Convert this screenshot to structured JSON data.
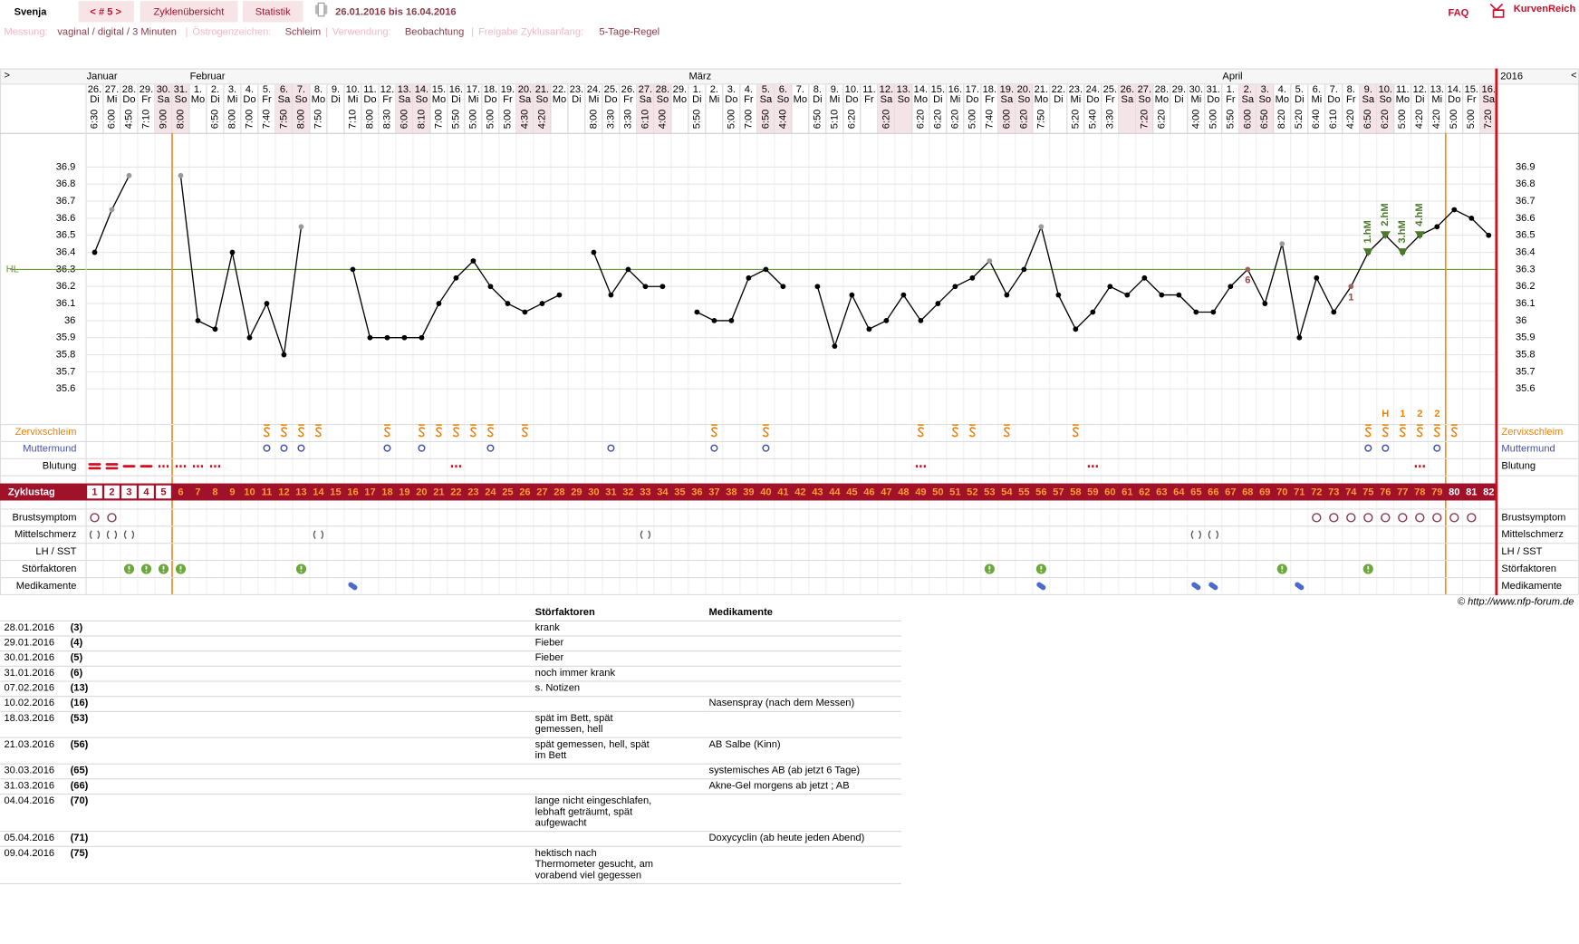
{
  "header": {
    "name": "Svenja",
    "cycle_nav": "< # 5 >",
    "tabs": [
      "Zyklenübersicht",
      "Statistik"
    ],
    "date_range": "26.01.2016 bis 16.04.2016",
    "faq": "FAQ",
    "brand": "KurvenReich",
    "separator": "|"
  },
  "settings": [
    {
      "label": "Messung:",
      "value": "vaginal / digital / 3 Minuten"
    },
    {
      "label": "Östrogenzeichen:",
      "value": "Schleim"
    },
    {
      "label": "Verwendung:",
      "value": "Beobachtung"
    },
    {
      "label": "Freigabe Zyklusanfang:",
      "value": "5-Tage-Regel"
    }
  ],
  "chart_data": {
    "type": "line",
    "nav_prev": ">",
    "nav_next": "<",
    "year": "2016",
    "months": [
      {
        "label": "Januar",
        "day": 0
      },
      {
        "label": "Februar",
        "day": 6
      },
      {
        "label": "März",
        "day": 35
      },
      {
        "label": "April",
        "day": 66
      }
    ],
    "days": {
      "dates": [
        "26.",
        "27.",
        "28.",
        "29.",
        "30.",
        "31.",
        "1.",
        "2.",
        "3.",
        "4.",
        "5.",
        "6.",
        "7.",
        "8.",
        "9.",
        "10.",
        "11.",
        "12.",
        "13.",
        "14.",
        "15.",
        "16.",
        "17.",
        "18.",
        "19.",
        "20.",
        "21.",
        "22.",
        "23.",
        "24.",
        "25.",
        "26.",
        "27.",
        "28.",
        "29.",
        "1.",
        "2.",
        "3.",
        "4.",
        "5.",
        "6.",
        "7.",
        "8.",
        "9.",
        "10.",
        "11.",
        "12.",
        "13.",
        "14.",
        "15.",
        "16.",
        "17.",
        "18.",
        "19.",
        "20.",
        "21.",
        "22.",
        "23.",
        "24.",
        "25.",
        "26.",
        "27.",
        "28.",
        "29.",
        "30.",
        "31.",
        "1.",
        "2.",
        "3.",
        "4.",
        "5.",
        "6.",
        "7.",
        "8.",
        "9.",
        "10.",
        "11.",
        "12.",
        "13.",
        "14.",
        "15.",
        "16."
      ],
      "weekdays": [
        "Di",
        "Mi",
        "Do",
        "Fr",
        "Sa",
        "So",
        "Mo",
        "Di",
        "Mi",
        "Do",
        "Fr",
        "Sa",
        "So",
        "Mo",
        "Di",
        "Mi",
        "Do",
        "Fr",
        "Sa",
        "So",
        "Mo",
        "Di",
        "Mi",
        "Do",
        "Fr",
        "Sa",
        "So",
        "Mo",
        "Di",
        "Mi",
        "Do",
        "Fr",
        "Sa",
        "So",
        "Mo",
        "Di",
        "Mi",
        "Do",
        "Fr",
        "Sa",
        "So",
        "Mo",
        "Di",
        "Mi",
        "Do",
        "Fr",
        "Sa",
        "So",
        "Mo",
        "Di",
        "Mi",
        "Do",
        "Fr",
        "Sa",
        "So",
        "Mo",
        "Di",
        "Mi",
        "Do",
        "Fr",
        "Sa",
        "So",
        "Mo",
        "Di",
        "Mi",
        "Do",
        "Fr",
        "Sa",
        "So",
        "Mo",
        "Di",
        "Mi",
        "Do",
        "Fr",
        "Sa",
        "So",
        "Mo",
        "Di",
        "Mi",
        "Do",
        "Fr",
        "Sa"
      ],
      "times": [
        "6:30",
        "6:00",
        "4:50",
        "7:10",
        "9:00",
        "8:00",
        null,
        "6:50",
        "8:00",
        "7:00",
        "7:40",
        "7:50",
        "8:00",
        "7:50",
        null,
        "7:10",
        "8:00",
        "8:30",
        "6:00",
        "8:10",
        "7:00",
        "5:50",
        "5:00",
        "5:00",
        "5:00",
        "4:30",
        "4:20",
        null,
        null,
        "8:00",
        "3:30",
        "3:30",
        "6:10",
        "4:00",
        null,
        "5:50",
        null,
        "5:00",
        "7:00",
        "6:50",
        "4:40",
        null,
        "6:50",
        "5:10",
        "6:20",
        null,
        "6:20",
        null,
        "6:20",
        "6:20",
        "6:20",
        "5:00",
        "7:40",
        "6:00",
        "6:20",
        "7:50",
        null,
        "5:20",
        "5:40",
        "3:30",
        null,
        "7:20",
        "6:20",
        null,
        "4:00",
        "5:00",
        "5:50",
        "6:00",
        "6:50",
        "8:20",
        "5:20",
        "6:40",
        "6:10",
        "4:20",
        "6:50",
        "6:20",
        "5:00",
        "4:20",
        "4:20",
        "5:00",
        "5:00",
        "7:20"
      ]
    },
    "values": [
      36.4,
      36.65,
      36.85,
      null,
      null,
      36.85,
      36.0,
      35.95,
      36.4,
      35.9,
      36.1,
      35.8,
      36.55,
      null,
      null,
      36.3,
      35.9,
      35.9,
      35.9,
      35.9,
      36.1,
      36.25,
      36.35,
      36.2,
      36.1,
      36.05,
      36.1,
      36.15,
      null,
      36.4,
      36.15,
      36.3,
      36.2,
      36.2,
      null,
      36.05,
      36.0,
      36.0,
      36.25,
      36.3,
      36.2,
      null,
      36.2,
      35.85,
      36.15,
      35.95,
      36.0,
      36.15,
      36.0,
      36.1,
      36.2,
      36.25,
      36.35,
      36.15,
      36.3,
      36.55,
      36.15,
      35.95,
      36.05,
      36.2,
      36.15,
      36.25,
      36.15,
      36.15,
      36.05,
      36.05,
      36.2,
      36.3,
      36.1,
      36.45,
      35.9,
      36.25,
      36.05,
      36.2,
      36.4,
      36.5,
      36.4,
      36.5,
      36.55,
      36.65,
      36.6,
      36.5
    ],
    "excluded": [
      1,
      2,
      5,
      12,
      52,
      55,
      69
    ],
    "color": "#000000",
    "ylim": [
      35.4,
      37.1
    ],
    "yticks": [
      35.6,
      35.7,
      35.8,
      35.9,
      36,
      36.1,
      36.2,
      36.3,
      36.4,
      36.5,
      36.6,
      36.7,
      36.8,
      36.9
    ],
    "grid": true,
    "coverline": {
      "label": "HL",
      "value": 36.3,
      "color": "#6a9a3a"
    },
    "point_annotations": [
      {
        "day": 67,
        "label": "6"
      },
      {
        "day": 73,
        "label": "1"
      }
    ],
    "hm_labels": [
      {
        "day": 74,
        "label": "1.hM"
      },
      {
        "day": 75,
        "label": "2.hM"
      },
      {
        "day": 76,
        "label": "3.hM"
      },
      {
        "day": 77,
        "label": "4.hM"
      }
    ],
    "mucus_annotations": [
      {
        "day": 75,
        "label": "H"
      },
      {
        "day": 76,
        "label": "1"
      },
      {
        "day": 77,
        "label": "2"
      },
      {
        "day": 78,
        "label": "2"
      }
    ],
    "cycle_label": "Zyklustag",
    "cycle_days": [
      1,
      2,
      3,
      4,
      5,
      6,
      7,
      8,
      9,
      10,
      11,
      12,
      13,
      14,
      15,
      16,
      17,
      18,
      19,
      20,
      21,
      22,
      23,
      24,
      25,
      26,
      27,
      28,
      29,
      30,
      31,
      32,
      33,
      34,
      35,
      36,
      37,
      38,
      39,
      40,
      41,
      42,
      43,
      44,
      45,
      46,
      47,
      48,
      49,
      50,
      51,
      52,
      53,
      54,
      55,
      56,
      57,
      58,
      59,
      60,
      61,
      62,
      63,
      64,
      65,
      66,
      67,
      68,
      69,
      70,
      71,
      72,
      73,
      74,
      75,
      76,
      77,
      78,
      79,
      80,
      81,
      82
    ],
    "rows": {
      "zervixschleim": {
        "label": "Zervixschleim",
        "days": [
          10,
          11,
          12,
          13,
          17,
          19,
          20,
          21,
          22,
          23,
          25,
          36,
          39,
          48,
          50,
          51,
          53,
          57,
          74,
          75,
          76,
          77,
          78,
          79
        ]
      },
      "muttermund": {
        "label": "Muttermund",
        "days": [
          10,
          11,
          12,
          17,
          19,
          23,
          30,
          36,
          39,
          74,
          75,
          78
        ]
      },
      "blutung": {
        "label": "Blutung",
        "days": [
          0,
          1,
          2,
          3,
          4,
          5,
          6,
          7,
          21,
          48,
          58,
          77
        ]
      },
      "brustsymptom": {
        "label": "Brustsymptom",
        "days": [
          0,
          1,
          71,
          72,
          73,
          74,
          75,
          76,
          77,
          78,
          79,
          80
        ]
      },
      "mittelschmerz": {
        "label": "Mittelschmerz",
        "days": [
          0,
          1,
          2,
          13,
          32,
          64,
          65
        ]
      },
      "lh": {
        "label": "LH / SST",
        "days": []
      },
      "stoerfaktoren": {
        "label": "Störfaktoren",
        "days": [
          2,
          3,
          4,
          5,
          12,
          52,
          55,
          69,
          74
        ]
      },
      "medikamente": {
        "label": "Medikamente",
        "days": [
          15,
          55,
          64,
          65,
          70
        ]
      }
    }
  },
  "footer": "© http://www.nfp-forum.de",
  "notes": {
    "columns": [
      "Störfaktoren",
      "Medikamente"
    ],
    "rows": [
      [
        "28.01.2016",
        "(3)",
        "krank",
        null
      ],
      [
        "29.01.2016",
        "(4)",
        "Fieber",
        null
      ],
      [
        "30.01.2016",
        "(5)",
        "Fieber",
        null
      ],
      [
        "31.01.2016",
        "(6)",
        "noch immer krank",
        null
      ],
      [
        "07.02.2016",
        "(13)",
        "s. Notizen",
        null
      ],
      [
        "10.02.2016",
        "(16)",
        null,
        "Nasenspray (nach dem Messen)"
      ],
      [
        "18.03.2016",
        "(53)",
        "spät im Bett, spät gemessen, hell",
        null
      ],
      [
        "21.03.2016",
        "(56)",
        "spät gemessen, hell, spät im Bett",
        "AB Salbe (Kinn)"
      ],
      [
        "30.03.2016",
        "(65)",
        null,
        "systemisches AB (ab jetzt 6 Tage)"
      ],
      [
        "31.03.2016",
        "(66)",
        null,
        "Akne-Gel morgens ab jetzt ; AB"
      ],
      [
        "04.04.2016",
        "(70)",
        "lange nicht eingeschlafen, lebhaft geträumt, spät aufgewacht",
        null
      ],
      [
        "05.04.2016",
        "(71)",
        null,
        "Doxycyclin (ab heute jeden Abend)"
      ],
      [
        "09.04.2016",
        "(75)",
        "hektisch nach Thermometer gesucht, am vorabend viel gegessen",
        null
      ]
    ]
  }
}
